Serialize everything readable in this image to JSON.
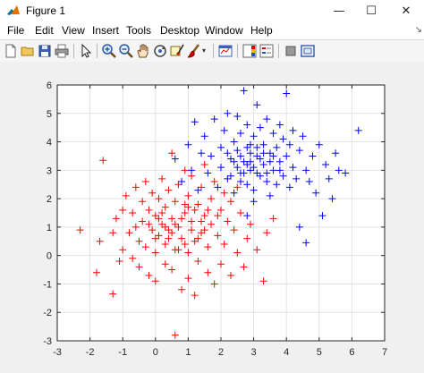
{
  "window": {
    "title": "Figure 1",
    "controls": {
      "minimize": "—",
      "maximize": "☐",
      "close": "✕"
    }
  },
  "menu": {
    "items": [
      "File",
      "Edit",
      "View",
      "Insert",
      "Tools",
      "Desktop",
      "Window",
      "Help"
    ]
  },
  "toolbar": {
    "icons": [
      "new-figure-icon",
      "open-file-icon",
      "save-icon",
      "print-icon",
      "edit-plot-arrow-icon",
      "zoom-in-icon",
      "zoom-out-icon",
      "pan-hand-icon",
      "rotate-3d-icon",
      "data-cursor-icon",
      "brush-icon",
      "link-plot-icon",
      "insert-colorbar-icon",
      "insert-legend-icon",
      "hide-plot-tools-icon",
      "show-plot-tools-icon"
    ]
  },
  "colors": {
    "class_a": "#ff0000",
    "class_b": "#0000ff",
    "grid": "#e2e2e2",
    "axes_bg": "#ffffff",
    "axes_border": "#262626"
  },
  "chart_data": {
    "type": "scatter",
    "marker": "+",
    "xlim": [
      -3,
      7
    ],
    "ylim": [
      -3,
      6
    ],
    "xticks": [
      -3,
      -2,
      -1,
      0,
      1,
      2,
      3,
      4,
      5,
      6,
      7
    ],
    "yticks": [
      -3,
      -2,
      -1,
      0,
      1,
      2,
      3,
      4,
      5,
      6
    ],
    "grid": true,
    "series": [
      {
        "color": "#ff0000",
        "points": [
          [
            -2.3,
            0.9
          ],
          [
            -1.8,
            -0.6
          ],
          [
            -1.6,
            3.35
          ],
          [
            -1.7,
            0.5
          ],
          [
            -1.3,
            -1.35
          ],
          [
            -1.3,
            0.8
          ],
          [
            -1.2,
            1.3
          ],
          [
            -1.1,
            -0.2
          ],
          [
            -1.0,
            1.6
          ],
          [
            -1.0,
            0.2
          ],
          [
            -0.9,
            2.1
          ],
          [
            -0.8,
            0.8
          ],
          [
            -0.7,
            1.5
          ],
          [
            -0.7,
            -0.1
          ],
          [
            -0.6,
            2.4
          ],
          [
            -0.6,
            1.0
          ],
          [
            -0.5,
            0.5
          ],
          [
            -0.5,
            -0.4
          ],
          [
            -0.4,
            1.9
          ],
          [
            -0.4,
            1.2
          ],
          [
            -0.3,
            2.6
          ],
          [
            -0.3,
            0.3
          ],
          [
            -0.2,
            1.6
          ],
          [
            -0.2,
            -0.7
          ],
          [
            -0.1,
            2.2
          ],
          [
            -0.1,
            0.9
          ],
          [
            0.0,
            1.4
          ],
          [
            0.0,
            0.1
          ],
          [
            0.0,
            -0.9
          ],
          [
            0.1,
            2.0
          ],
          [
            0.1,
            0.7
          ],
          [
            0.2,
            1.1
          ],
          [
            0.2,
            2.7
          ],
          [
            0.3,
            0.4
          ],
          [
            0.3,
            -0.3
          ],
          [
            0.3,
            1.7
          ],
          [
            0.4,
            2.3
          ],
          [
            0.4,
            0.9
          ],
          [
            0.5,
            1.3
          ],
          [
            0.5,
            -0.5
          ],
          [
            0.5,
            3.6
          ],
          [
            0.6,
            0.2
          ],
          [
            0.6,
            1.9
          ],
          [
            0.6,
            -2.8
          ],
          [
            0.7,
            1.0
          ],
          [
            0.7,
            2.5
          ],
          [
            0.8,
            0.6
          ],
          [
            0.8,
            -1.2
          ],
          [
            0.9,
            1.5
          ],
          [
            0.9,
            3.0
          ],
          [
            1.0,
            0.1
          ],
          [
            1.0,
            2.1
          ],
          [
            1.0,
            -0.8
          ],
          [
            1.1,
            1.2
          ],
          [
            1.1,
            2.8
          ],
          [
            1.2,
            0.5
          ],
          [
            1.2,
            -1.4
          ],
          [
            1.3,
            1.8
          ],
          [
            1.3,
            -0.2
          ],
          [
            1.4,
            2.4
          ],
          [
            1.4,
            0.8
          ],
          [
            1.5,
            1.4
          ],
          [
            1.5,
            3.2
          ],
          [
            1.6,
            0.3
          ],
          [
            1.6,
            -0.6
          ],
          [
            1.7,
            2.0
          ],
          [
            1.7,
            1.1
          ],
          [
            1.8,
            -1.0
          ],
          [
            1.8,
            2.6
          ],
          [
            1.9,
            0.7
          ],
          [
            2.0,
            1.6
          ],
          [
            2.0,
            -0.3
          ],
          [
            2.1,
            2.2
          ],
          [
            2.1,
            0.4
          ],
          [
            2.2,
            1.2
          ],
          [
            2.3,
            -0.7
          ],
          [
            2.3,
            1.9
          ],
          [
            2.4,
            0.9
          ],
          [
            2.5,
            0.1
          ],
          [
            2.5,
            2.4
          ],
          [
            2.6,
            1.5
          ],
          [
            2.7,
            -0.4
          ],
          [
            2.8,
            0.6
          ],
          [
            2.9,
            1.1
          ],
          [
            3.1,
            0.2
          ],
          [
            3.3,
            -0.9
          ],
          [
            3.4,
            0.8
          ],
          [
            3.6,
            1.3
          ],
          [
            0.2,
            1.5
          ],
          [
            0.4,
            0.6
          ],
          [
            0.6,
            1.1
          ],
          [
            0.8,
            1.3
          ],
          [
            0.9,
            0.4
          ],
          [
            1.1,
            0.9
          ],
          [
            1.2,
            1.6
          ],
          [
            0.3,
            1.0
          ],
          [
            0.7,
            0.2
          ],
          [
            1.4,
            1.2
          ],
          [
            -0.2,
            1.1
          ],
          [
            0.0,
            0.6
          ],
          [
            0.5,
            0.8
          ],
          [
            1.0,
            1.7
          ],
          [
            1.3,
            0.6
          ],
          [
            1.6,
            1.6
          ],
          [
            0.1,
            1.3
          ],
          [
            0.9,
            1.8
          ],
          [
            1.5,
            0.9
          ],
          [
            1.9,
            1.4
          ]
        ]
      },
      {
        "color": "#0000ff",
        "points": [
          [
            0.6,
            3.4
          ],
          [
            0.8,
            2.6
          ],
          [
            1.0,
            3.9
          ],
          [
            1.1,
            3.0
          ],
          [
            1.2,
            4.7
          ],
          [
            1.3,
            2.3
          ],
          [
            1.4,
            3.6
          ],
          [
            1.5,
            4.2
          ],
          [
            1.6,
            2.9
          ],
          [
            1.7,
            3.5
          ],
          [
            1.8,
            4.8
          ],
          [
            1.9,
            2.4
          ],
          [
            2.0,
            3.8
          ],
          [
            2.0,
            3.1
          ],
          [
            2.1,
            4.4
          ],
          [
            2.2,
            2.7
          ],
          [
            2.2,
            5.0
          ],
          [
            2.3,
            3.4
          ],
          [
            2.4,
            4.0
          ],
          [
            2.4,
            2.2
          ],
          [
            2.5,
            3.7
          ],
          [
            2.5,
            4.9
          ],
          [
            2.6,
            2.9
          ],
          [
            2.6,
            4.3
          ],
          [
            2.7,
            5.8
          ],
          [
            2.7,
            3.3
          ],
          [
            2.8,
            2.5
          ],
          [
            2.8,
            4.6
          ],
          [
            2.9,
            3.9
          ],
          [
            2.9,
            3.0
          ],
          [
            3.0,
            4.2
          ],
          [
            3.0,
            2.3
          ],
          [
            3.1,
            5.3
          ],
          [
            3.1,
            3.5
          ],
          [
            3.2,
            2.8
          ],
          [
            3.2,
            4.5
          ],
          [
            3.3,
            3.2
          ],
          [
            3.3,
            3.9
          ],
          [
            3.4,
            2.6
          ],
          [
            3.4,
            4.8
          ],
          [
            3.5,
            3.6
          ],
          [
            3.5,
            2.1
          ],
          [
            3.6,
            4.3
          ],
          [
            3.6,
            3.0
          ],
          [
            3.7,
            3.8
          ],
          [
            3.7,
            2.5
          ],
          [
            3.8,
            4.6
          ],
          [
            3.8,
            3.3
          ],
          [
            3.9,
            2.8
          ],
          [
            3.9,
            4.1
          ],
          [
            4.0,
            3.5
          ],
          [
            4.0,
            5.7
          ],
          [
            4.1,
            2.4
          ],
          [
            4.1,
            3.9
          ],
          [
            4.2,
            4.4
          ],
          [
            4.2,
            3.1
          ],
          [
            4.3,
            2.7
          ],
          [
            4.4,
            3.7
          ],
          [
            4.5,
            4.2
          ],
          [
            4.6,
            3.0
          ],
          [
            4.6,
            0.45
          ],
          [
            4.7,
            2.6
          ],
          [
            4.8,
            3.5
          ],
          [
            4.9,
            2.2
          ],
          [
            5.0,
            3.9
          ],
          [
            5.1,
            1.4
          ],
          [
            5.2,
            3.2
          ],
          [
            5.3,
            2.7
          ],
          [
            5.5,
            3.6
          ],
          [
            5.6,
            3.0
          ],
          [
            5.8,
            2.9
          ],
          [
            6.2,
            4.4
          ],
          [
            5.4,
            2.0
          ],
          [
            4.4,
            1.0
          ],
          [
            3.0,
            1.9
          ],
          [
            2.8,
            1.4
          ],
          [
            2.3,
            2.8
          ],
          [
            2.6,
            3.5
          ],
          [
            2.9,
            3.3
          ],
          [
            3.1,
            2.9
          ],
          [
            3.3,
            3.6
          ],
          [
            2.5,
            3.1
          ],
          [
            2.8,
            3.8
          ],
          [
            3.0,
            3.1
          ],
          [
            3.5,
            3.3
          ],
          [
            2.7,
            2.9
          ],
          [
            3.2,
            3.4
          ],
          [
            2.4,
            3.3
          ],
          [
            3.4,
            2.9
          ],
          [
            2.9,
            3.6
          ],
          [
            3.6,
            3.5
          ],
          [
            2.2,
            3.6
          ],
          [
            3.8,
            3.0
          ],
          [
            2.6,
            2.6
          ],
          [
            3.1,
            3.8
          ],
          [
            2.8,
            3.2
          ]
        ]
      }
    ]
  }
}
